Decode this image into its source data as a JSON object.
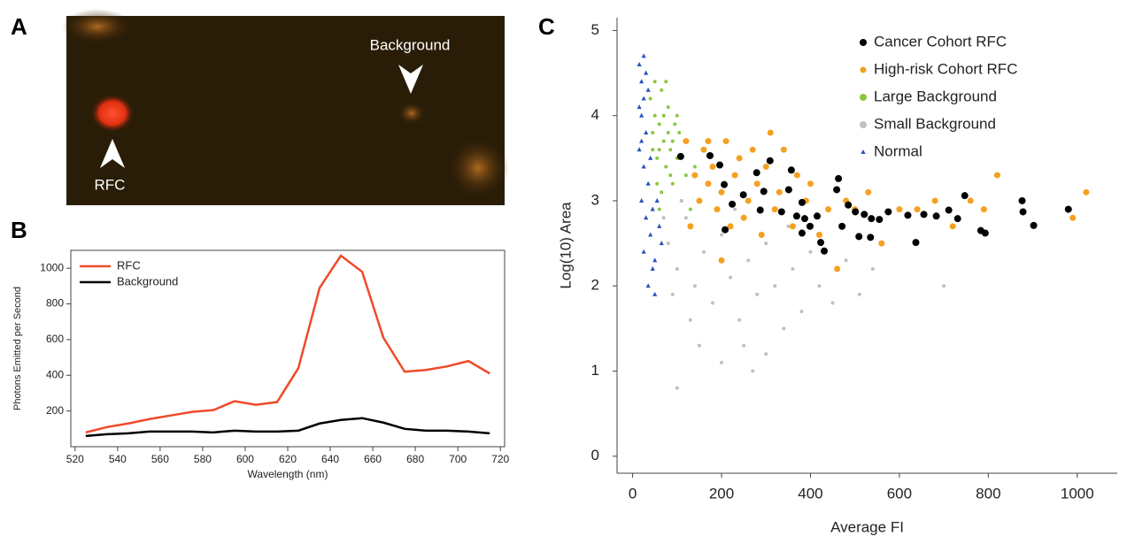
{
  "panel_a": {
    "panel_label": "A",
    "annotations": [
      "RFC",
      "Background"
    ]
  },
  "chart_data": [
    {
      "type": "line",
      "panel_label": "B",
      "x_label": "Wavelength (nm)",
      "y_label": "Photons Emitted per Second",
      "x": [
        525,
        535,
        545,
        555,
        565,
        575,
        585,
        595,
        605,
        615,
        625,
        635,
        645,
        655,
        665,
        675,
        685,
        695,
        705,
        715
      ],
      "series": [
        {
          "name": "RFC",
          "color": "#f04a2a",
          "values": [
            80,
            110,
            130,
            155,
            175,
            195,
            205,
            255,
            235,
            250,
            440,
            890,
            1070,
            980,
            610,
            420,
            430,
            450,
            480,
            410
          ]
        },
        {
          "name": "Background",
          "color": "#000000",
          "values": [
            60,
            70,
            75,
            85,
            85,
            85,
            80,
            90,
            85,
            85,
            90,
            130,
            150,
            160,
            135,
            100,
            90,
            90,
            85,
            75
          ]
        }
      ],
      "xlim": [
        518,
        722
      ],
      "xticks": [
        520,
        540,
        560,
        580,
        600,
        620,
        640,
        660,
        680,
        700,
        720
      ],
      "ylim": [
        0,
        1100
      ],
      "yticks": [
        200,
        400,
        600,
        800,
        1000
      ],
      "legend": "upper-left"
    },
    {
      "type": "scatter",
      "panel_label": "C",
      "x_label": "Average FI",
      "y_label": "Log(10) Area",
      "series": [
        {
          "name": "Cancer Cohort RFC",
          "color": "#000000",
          "marker": "circle",
          "x": [
            108,
            174,
            196,
            206,
            224,
            249,
            279,
            295,
            287,
            309,
            335,
            357,
            351,
            381,
            369,
            387,
            415,
            381,
            399,
            463,
            459,
            471,
            485,
            501,
            509,
            521,
            537,
            535,
            555,
            575,
            423,
            431,
            208,
            619,
            655,
            683,
            711,
            731,
            747,
            637,
            783,
            793,
            876,
            878,
            902,
            980
          ],
          "y": [
            3.52,
            3.53,
            3.42,
            3.19,
            2.96,
            3.07,
            3.33,
            3.11,
            2.89,
            3.47,
            2.87,
            3.36,
            3.13,
            2.98,
            2.82,
            2.79,
            2.82,
            2.62,
            2.7,
            3.26,
            3.13,
            2.7,
            2.95,
            2.87,
            2.58,
            2.84,
            2.79,
            2.57,
            2.78,
            2.87,
            2.51,
            2.41,
            2.66,
            2.83,
            2.84,
            2.82,
            2.89,
            2.79,
            3.06,
            2.51,
            2.65,
            2.62,
            3.0,
            2.87,
            2.71,
            2.9
          ]
        },
        {
          "name": "High-risk Cohort RFC",
          "color": "#f5a020",
          "marker": "circle",
          "x": [
            120,
            140,
            150,
            160,
            170,
            180,
            190,
            200,
            210,
            220,
            230,
            240,
            250,
            260,
            270,
            280,
            290,
            300,
            310,
            320,
            330,
            340,
            360,
            370,
            390,
            400,
            420,
            440,
            460,
            480,
            500,
            530,
            560,
            600,
            640,
            680,
            720,
            760,
            790,
            820,
            990,
            1020,
            200,
            170,
            130
          ],
          "y": [
            3.7,
            3.3,
            3.0,
            3.6,
            3.2,
            3.4,
            2.9,
            3.1,
            3.7,
            2.7,
            3.3,
            3.5,
            2.8,
            3.0,
            3.6,
            3.2,
            2.6,
            3.4,
            3.8,
            2.9,
            3.1,
            3.6,
            2.7,
            3.3,
            3.0,
            3.2,
            2.6,
            2.9,
            2.2,
            3.0,
            2.9,
            3.1,
            2.5,
            2.9,
            2.9,
            3.0,
            2.7,
            3.0,
            2.9,
            3.3,
            2.8,
            3.1,
            2.3,
            3.7,
            2.7
          ]
        },
        {
          "name": "Large Background",
          "color": "#8cc63f",
          "marker": "dot",
          "x": [
            40,
            45,
            50,
            55,
            60,
            65,
            70,
            75,
            80,
            85,
            90,
            95,
            100,
            110,
            120,
            55,
            60,
            70,
            80,
            65,
            75,
            50,
            90,
            105,
            130,
            140,
            45,
            85,
            60,
            100
          ],
          "y": [
            4.2,
            3.8,
            4.0,
            3.5,
            3.9,
            4.3,
            3.7,
            3.4,
            4.1,
            3.6,
            3.2,
            3.9,
            3.5,
            3.0,
            3.3,
            3.2,
            3.6,
            4.0,
            3.8,
            3.1,
            4.4,
            4.4,
            3.7,
            3.8,
            2.9,
            3.4,
            3.6,
            3.3,
            2.9,
            4.0
          ]
        },
        {
          "name": "Small Background",
          "color": "#c0c0c0",
          "marker": "dot",
          "x": [
            80,
            100,
            120,
            140,
            160,
            180,
            200,
            220,
            240,
            260,
            280,
            300,
            320,
            340,
            360,
            380,
            400,
            420,
            450,
            480,
            510,
            150,
            200,
            250,
            130,
            90,
            70,
            110,
            300,
            350,
            230,
            540,
            700,
            100,
            270
          ],
          "y": [
            2.5,
            2.2,
            2.8,
            2.0,
            2.4,
            1.8,
            2.6,
            2.1,
            1.6,
            2.3,
            1.9,
            2.5,
            2.0,
            1.5,
            2.2,
            1.7,
            2.4,
            2.0,
            1.8,
            2.3,
            1.9,
            1.3,
            1.1,
            1.3,
            1.6,
            1.9,
            2.8,
            3.0,
            1.2,
            2.7,
            2.9,
            2.2,
            2.0,
            0.8,
            1.0
          ]
        },
        {
          "name": "Normal",
          "color": "#2a52be",
          "marker": "triangle",
          "x": [
            15,
            20,
            25,
            20,
            30,
            15,
            25,
            35,
            20,
            30,
            40,
            25,
            45,
            35,
            50,
            60,
            20,
            30,
            40,
            55,
            50,
            15,
            65,
            45,
            35,
            25
          ],
          "y": [
            4.6,
            4.4,
            4.2,
            4.0,
            3.8,
            3.6,
            3.4,
            3.2,
            3.0,
            2.8,
            2.6,
            2.4,
            2.2,
            2.0,
            2.3,
            2.7,
            3.7,
            4.5,
            3.5,
            3.0,
            1.9,
            4.1,
            2.5,
            2.9,
            4.3,
            4.7
          ]
        }
      ],
      "xlim": [
        -35,
        1090
      ],
      "xticks": [
        0,
        200,
        400,
        600,
        800,
        1000
      ],
      "ylim": [
        -0.2,
        5.15
      ],
      "yticks": [
        0,
        1,
        2,
        3,
        4,
        5
      ],
      "legend": "upper-right"
    }
  ]
}
